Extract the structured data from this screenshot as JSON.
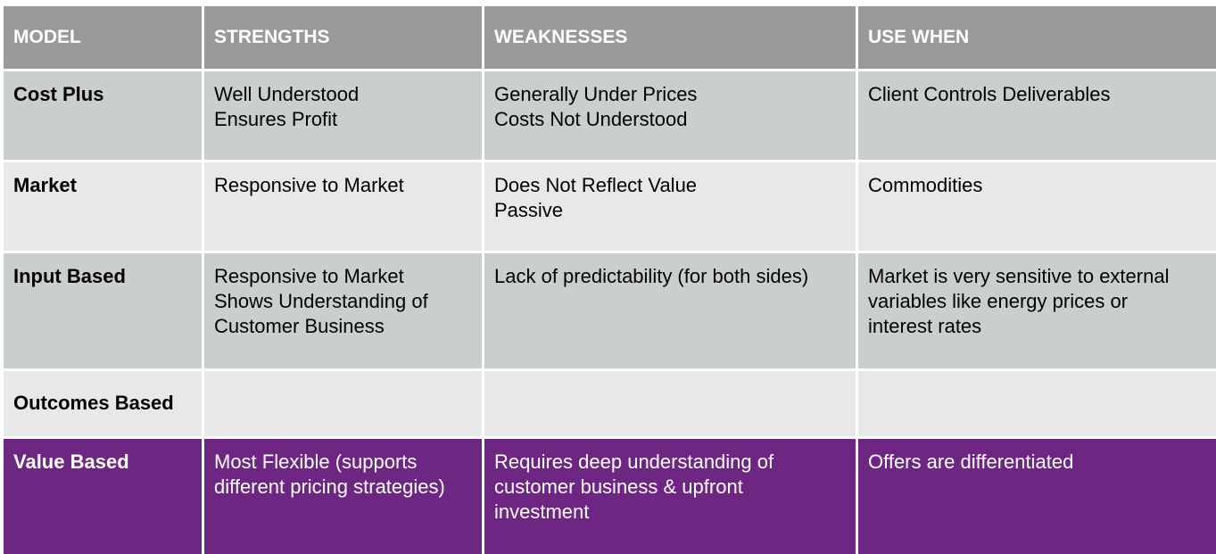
{
  "header": {
    "model": "MODEL",
    "strengths": "STRENGTHS",
    "weaknesses": "WEAKNESSES",
    "use_when": "USE WHEN"
  },
  "rows": [
    {
      "model": "Cost Plus",
      "strengths": [
        "Well Understood",
        "Ensures Profit"
      ],
      "weaknesses": [
        "Generally Under Prices",
        "Costs Not Understood"
      ],
      "use_when": [
        "Client Controls Deliverables"
      ]
    },
    {
      "model": "Market",
      "strengths": [
        "Responsive to Market"
      ],
      "weaknesses": [
        "Does Not Reflect Value",
        "Passive"
      ],
      "use_when": [
        "Commodities"
      ]
    },
    {
      "model": "Input Based",
      "strengths": [
        "Responsive to Market",
        "Shows Understanding of",
        "Customer Business"
      ],
      "weaknesses": [
        "Lack of predictability (for both sides)"
      ],
      "use_when": [
        "Market is very sensitive to external",
        "variables like energy prices or",
        "interest rates"
      ]
    },
    {
      "model": "Outcomes Based",
      "strengths": [],
      "weaknesses": [],
      "use_when": []
    },
    {
      "model": "Value Based",
      "strengths": [
        "Most Flexible (supports",
        "different pricing strategies)"
      ],
      "weaknesses": [
        "Requires deep understanding of",
        "customer business & upfront",
        "investment"
      ],
      "use_when": [
        "Offers are differentiated"
      ]
    }
  ],
  "colors": {
    "header_bg": "#999999",
    "row_dark": "#cbcfcc",
    "row_light": "#e7e8e7",
    "row_purple": "#6e2683"
  }
}
